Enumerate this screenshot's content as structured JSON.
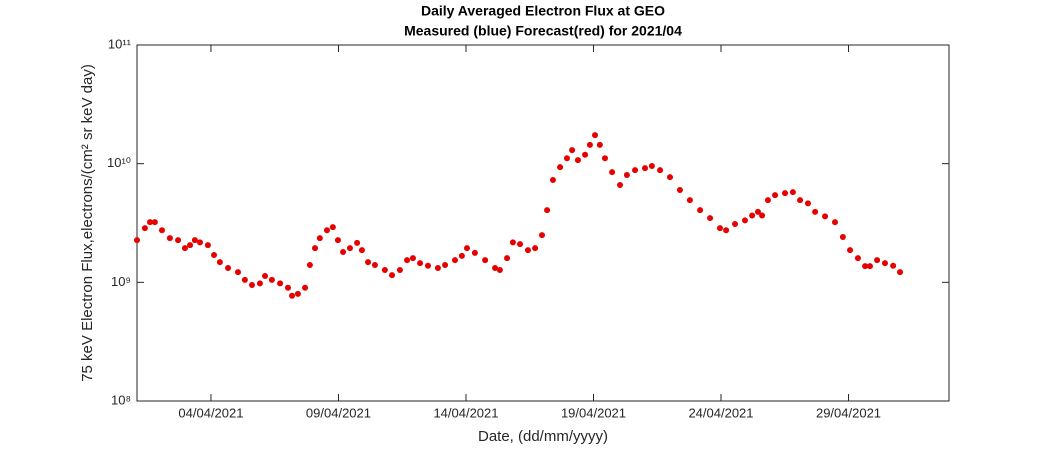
{
  "chart_data": {
    "type": "scatter",
    "title": "Daily Averaged Electron Flux at GEO",
    "subtitle": "Measured (blue) Forecast(red) for 2021/04",
    "x_label": "Date, (dd/mm/yyyy)",
    "y_label": "75 keV Electron Flux,electrons/(cm² sr keV day)",
    "yscale": "log",
    "grid": false,
    "xlim": [
      1.1,
      32.94
    ],
    "ylim": [
      100000000.0,
      100000000000.0
    ],
    "xticks": [
      {
        "value": 4,
        "label": "04/04/2021"
      },
      {
        "value": 9,
        "label": "09/04/2021"
      },
      {
        "value": 14,
        "label": "14/04/2021"
      },
      {
        "value": 19,
        "label": "19/04/2021"
      },
      {
        "value": 24,
        "label": "24/04/2021"
      },
      {
        "value": 29,
        "label": "29/04/2021"
      }
    ],
    "yticks": [
      {
        "value": 100000000.0,
        "label": "10⁸"
      },
      {
        "value": 1000000000.0,
        "label": "10⁹"
      },
      {
        "value": 10000000000.0,
        "label": "10¹⁰"
      },
      {
        "value": 100000000000.0,
        "label": "10¹¹"
      }
    ],
    "series": [
      {
        "color": "#e60000",
        "x": [
          1.1,
          1.41,
          1.61,
          1.8,
          2.08,
          2.39,
          2.71,
          2.98,
          3.18,
          3.37,
          3.57,
          3.88,
          4.12,
          4.35,
          4.67,
          5.06,
          5.33,
          5.61,
          5.92,
          6.12,
          6.39,
          6.71,
          7.02,
          7.18,
          7.41,
          7.69,
          7.88,
          8.08,
          8.27,
          8.55,
          8.78,
          8.98,
          9.18,
          9.45,
          9.73,
          9.92,
          10.16,
          10.43,
          10.82,
          11.1,
          11.41,
          11.69,
          11.92,
          12.2,
          12.51,
          12.9,
          13.18,
          13.57,
          13.84,
          14.04,
          14.35,
          14.75,
          15.14,
          15.33,
          15.61,
          15.84,
          16.12,
          16.43,
          16.71,
          16.98,
          17.18,
          17.41,
          17.69,
          17.96,
          18.16,
          18.39,
          18.67,
          18.86,
          19.06,
          19.25,
          19.45,
          19.73,
          20.04,
          20.31,
          20.63,
          21.02,
          21.29,
          21.61,
          22.0,
          22.39,
          22.78,
          23.18,
          23.57,
          23.96,
          24.2,
          24.55,
          24.94,
          25.22,
          25.45,
          25.61,
          25.84,
          26.12,
          26.51,
          26.82,
          27.1,
          27.41,
          27.69,
          28.08,
          28.47,
          28.78,
          29.06,
          29.37,
          29.65,
          29.84,
          30.12,
          30.43,
          30.75,
          31.02
        ],
        "values": [
          2270000000.0,
          2860000000.0,
          3220000000.0,
          3220000000.0,
          2750000000.0,
          2360000000.0,
          2270000000.0,
          1940000000.0,
          2060000000.0,
          2270000000.0,
          2170000000.0,
          2060000000.0,
          1700000000.0,
          1480000000.0,
          1320000000.0,
          1220000000.0,
          1050000000.0,
          950000000.0,
          980000000.0,
          1130000000.0,
          1050000000.0,
          980000000.0,
          900000000.0,
          770000000.0,
          800000000.0,
          900000000.0,
          1400000000.0,
          1940000000.0,
          2360000000.0,
          2750000000.0,
          2920000000.0,
          2270000000.0,
          1800000000.0,
          1940000000.0,
          2150000000.0,
          1870000000.0,
          1480000000.0,
          1400000000.0,
          1270000000.0,
          1150000000.0,
          1270000000.0,
          1540000000.0,
          1600000000.0,
          1450000000.0,
          1380000000.0,
          1320000000.0,
          1400000000.0,
          1540000000.0,
          1670000000.0,
          1940000000.0,
          1770000000.0,
          1540000000.0,
          1320000000.0,
          1270000000.0,
          1600000000.0,
          2170000000.0,
          2100000000.0,
          1870000000.0,
          1940000000.0,
          2500000000.0,
          4060000000.0,
          7280000000.0,
          9360000000.0,
          11100000000.0,
          13000000000.0,
          10700000000.0,
          11900000000.0,
          14400000000.0,
          17400000000.0,
          14400000000.0,
          11100000000.0,
          8490000000.0,
          6610000000.0,
          8020000000.0,
          8830000000.0,
          9180000000.0,
          9550000000.0,
          8830000000.0,
          7710000000.0,
          6000000000.0,
          4930000000.0,
          4060000000.0,
          3480000000.0,
          2860000000.0,
          2750000000.0,
          3100000000.0,
          3330000000.0,
          3660000000.0,
          3920000000.0,
          3660000000.0,
          4930000000.0,
          5430000000.0,
          5640000000.0,
          5750000000.0,
          4930000000.0,
          4630000000.0,
          3920000000.0,
          3600000000.0,
          3220000000.0,
          2410000000.0,
          1870000000.0,
          1600000000.0,
          1370000000.0,
          1370000000.0,
          1540000000.0,
          1450000000.0,
          1380000000.0,
          1220000000.0
        ]
      }
    ]
  }
}
